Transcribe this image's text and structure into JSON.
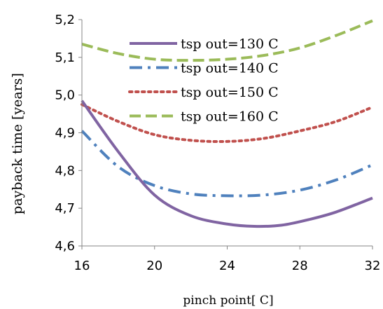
{
  "chart_data": {
    "type": "line",
    "title": "",
    "xlabel": "pinch point[ C]",
    "ylabel": "payback time [years]",
    "xlim": [
      16,
      32
    ],
    "ylim": [
      4.6,
      5.2
    ],
    "x_ticks": [
      "16",
      "20",
      "24",
      "28",
      "32"
    ],
    "y_ticks": [
      "4,6",
      "4,7",
      "4,8",
      "4,9",
      "5,0",
      "5,1",
      "5,2"
    ],
    "grid": false,
    "legend_position": "top-center",
    "series": [
      {
        "name": "tsp out=130  C",
        "color": "#8064a2",
        "style": "solid",
        "points": [
          [
            16,
            4.985
          ],
          [
            18,
            4.85
          ],
          [
            20,
            4.735
          ],
          [
            22,
            4.68
          ],
          [
            24,
            4.658
          ],
          [
            25.5,
            4.652
          ],
          [
            27,
            4.655
          ],
          [
            28.5,
            4.67
          ],
          [
            30,
            4.69
          ],
          [
            32,
            4.727
          ]
        ]
      },
      {
        "name": "tsp out=140  C",
        "color": "#4f81bd",
        "style": "dashdot",
        "points": [
          [
            16,
            4.905
          ],
          [
            18,
            4.81
          ],
          [
            20,
            4.76
          ],
          [
            22,
            4.738
          ],
          [
            24,
            4.733
          ],
          [
            26,
            4.735
          ],
          [
            28,
            4.748
          ],
          [
            30,
            4.775
          ],
          [
            32,
            4.815
          ]
        ]
      },
      {
        "name": "tsp out=150  C",
        "color": "#c0504d",
        "style": "dotted",
        "points": [
          [
            16,
            4.975
          ],
          [
            18,
            4.93
          ],
          [
            20,
            4.895
          ],
          [
            22,
            4.88
          ],
          [
            24,
            4.877
          ],
          [
            26,
            4.885
          ],
          [
            28,
            4.905
          ],
          [
            30,
            4.93
          ],
          [
            32,
            4.968
          ]
        ]
      },
      {
        "name": "tsp out=160  C",
        "color": "#9bbb59",
        "style": "dashed",
        "points": [
          [
            16,
            5.135
          ],
          [
            18,
            5.11
          ],
          [
            20,
            5.095
          ],
          [
            22,
            5.092
          ],
          [
            24,
            5.095
          ],
          [
            26,
            5.105
          ],
          [
            28,
            5.125
          ],
          [
            30,
            5.158
          ],
          [
            32,
            5.197
          ]
        ]
      }
    ]
  }
}
